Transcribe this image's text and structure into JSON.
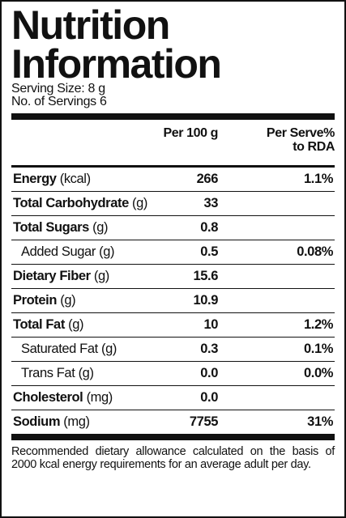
{
  "title_lines": [
    "Nutrition",
    "Information"
  ],
  "serving": {
    "size": "Serving Size: 8 g",
    "count": "No. of Servings 6"
  },
  "header": {
    "per_100g": "Per 100 g",
    "per_serve_lines": [
      "Per Serve%",
      "to RDA"
    ]
  },
  "rows": [
    {
      "name": "Energy",
      "unit": "(kcal)",
      "per_100g": "266",
      "rda": "1.1%"
    },
    {
      "name": "Total Carbohydrate",
      "unit": "(g)",
      "per_100g": "33"
    },
    {
      "name": "Total Sugars",
      "unit": "(g)",
      "per_100g": "0.8"
    },
    {
      "name": "Added Sugar",
      "unit": "(g)",
      "per_100g": "0.5",
      "rda": "0.08%",
      "indent": true
    },
    {
      "name": "Dietary Fiber",
      "unit": "(g)",
      "per_100g": "15.6"
    },
    {
      "name": "Protein",
      "unit": "(g)",
      "per_100g": "10.9"
    },
    {
      "name": "Total Fat",
      "unit": "(g)",
      "per_100g": "10",
      "rda": "1.2%"
    },
    {
      "name": "Saturated Fat",
      "unit": "(g)",
      "per_100g": "0.3",
      "rda": "0.1%",
      "indent": true
    },
    {
      "name": "Trans Fat",
      "unit": "(g)",
      "per_100g": "0.0",
      "rda": "0.0%",
      "indent": true
    },
    {
      "name": "Cholesterol",
      "unit": "(mg)",
      "per_100g": "0.0"
    },
    {
      "name": "Sodium",
      "unit": "(mg)",
      "per_100g": "7755",
      "rda": "31%"
    }
  ],
  "footnote": "Recommended dietary allowance calculated on the basis of 2000 kcal energy requirements for an average adult per day."
}
